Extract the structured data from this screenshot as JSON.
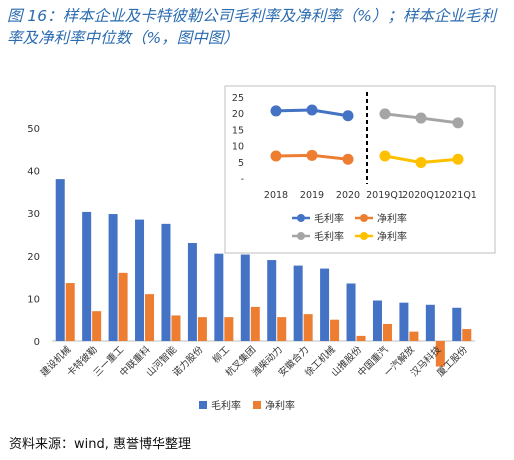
{
  "title": "图 16：样本企业及卡特彼勒公司毛利率及净利率（%）；样本企业毛利率及净利率中位数（%，图中图）",
  "source": "资料来源：wind, 惠誉博华整理",
  "chart_data": [
    {
      "type": "bar",
      "categories": [
        "建设机械",
        "卡特彼勒",
        "三一重工",
        "中联重科",
        "山河智能",
        "诺力股份",
        "柳工",
        "杭叉集团",
        "潍柴动力",
        "安徽合力",
        "徐工机械",
        "山推股份",
        "中国重汽",
        "一汽解放",
        "汉马科技",
        "厦工股份"
      ],
      "series": [
        {
          "name": "毛利率",
          "color": "#4472c4",
          "values": [
            38,
            30.3,
            29.8,
            28.5,
            27.5,
            23,
            20.5,
            20.3,
            19,
            17.7,
            17,
            13.5,
            9.5,
            9,
            8.5,
            7.8
          ]
        },
        {
          "name": "净利率",
          "color": "#ed7d31",
          "values": [
            13.6,
            7,
            16,
            11,
            6,
            5.6,
            5.6,
            8,
            5.6,
            6.3,
            5,
            1.2,
            4,
            2.2,
            -6,
            2.8
          ]
        }
      ],
      "yticks": [
        0,
        10,
        20,
        30,
        40,
        50
      ],
      "ylim": [
        -8,
        50
      ],
      "legend": "bottom"
    },
    {
      "type": "line",
      "categories": [
        "2018",
        "2019",
        "2020",
        "2019Q1",
        "2020Q1",
        "2021Q1"
      ],
      "series": [
        {
          "name": "毛利率",
          "color": "#4472c4",
          "values": [
            20.7,
            21,
            19.2,
            null,
            null,
            null
          ]
        },
        {
          "name": "净利率",
          "color": "#ed7d31",
          "values": [
            6.8,
            7,
            5.8,
            null,
            null,
            null
          ]
        },
        {
          "name": "毛利率",
          "color": "#a5a5a5",
          "values": [
            null,
            null,
            null,
            19.8,
            18.5,
            17
          ]
        },
        {
          "name": "净利率",
          "color": "#ffc000",
          "values": [
            null,
            null,
            null,
            6.8,
            4.8,
            5.8
          ]
        }
      ],
      "yticks": [
        0,
        5,
        10,
        15,
        20,
        25
      ],
      "ylim": [
        0,
        25
      ],
      "legend": "bottom"
    }
  ]
}
